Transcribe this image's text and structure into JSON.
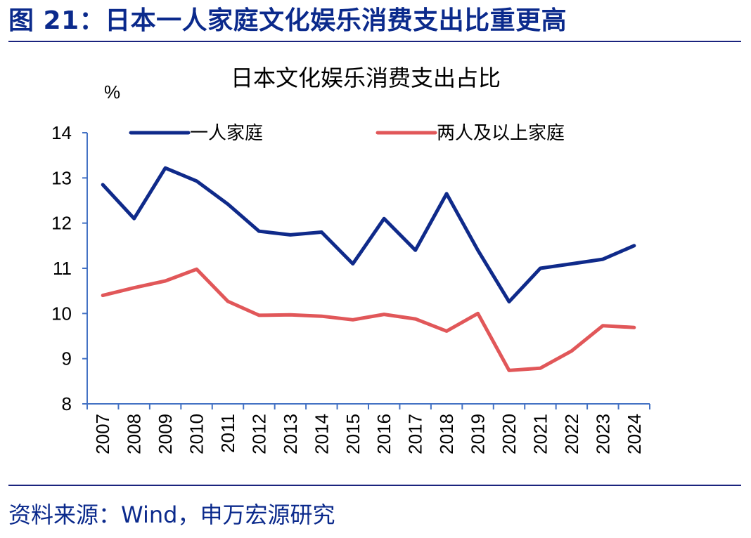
{
  "figure": {
    "title_prefix": "图 21",
    "title_colon": "：",
    "title_text": "日本一人家庭文化娱乐消费支出比重更高"
  },
  "source": {
    "label": "资料来源",
    "colon": "：",
    "text": "Wind，申万宏源研究"
  },
  "chart_data": {
    "type": "line",
    "title": "日本文化娱乐消费支出占比",
    "ylabel": "%",
    "xlabel": "",
    "ylim": [
      8,
      14
    ],
    "yticks": [
      8,
      9,
      10,
      11,
      12,
      13,
      14
    ],
    "categories": [
      "2007",
      "2008",
      "2009",
      "2010",
      "2011",
      "2012",
      "2013",
      "2014",
      "2015",
      "2016",
      "2017",
      "2018",
      "2019",
      "2020",
      "2021",
      "2022",
      "2023",
      "2024"
    ],
    "legend_position": "top",
    "grid": false,
    "series": [
      {
        "name": "一人家庭",
        "color": "#0f2a8a",
        "values": [
          12.85,
          12.1,
          13.22,
          12.93,
          12.42,
          11.82,
          11.74,
          11.8,
          11.1,
          12.1,
          11.4,
          12.65,
          11.4,
          10.26,
          11.0,
          11.1,
          11.2,
          11.5
        ]
      },
      {
        "name": "两人及以上家庭",
        "color": "#e15759",
        "values": [
          10.4,
          10.57,
          10.72,
          10.98,
          10.27,
          9.96,
          9.97,
          9.94,
          9.86,
          9.98,
          9.88,
          9.61,
          10.0,
          8.74,
          8.79,
          9.17,
          9.73,
          9.69
        ]
      }
    ]
  }
}
